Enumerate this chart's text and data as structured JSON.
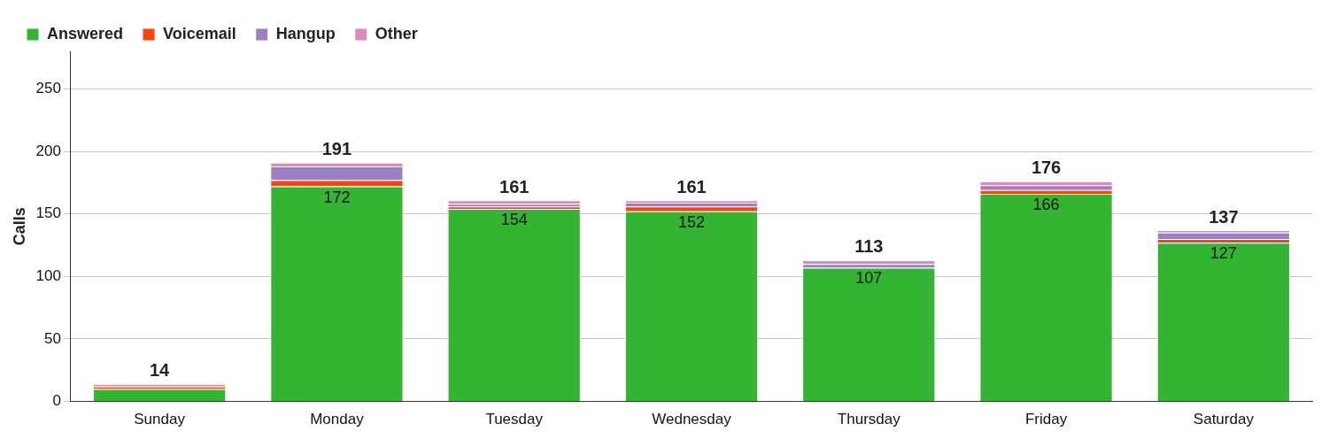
{
  "chart_data": {
    "type": "bar",
    "stacked": true,
    "ylabel": "Calls",
    "categories": [
      "Sunday",
      "Monday",
      "Tuesday",
      "Wednesday",
      "Thursday",
      "Friday",
      "Saturday"
    ],
    "series": [
      {
        "name": "Answered",
        "color": "#33b533",
        "values": [
          10,
          172,
          154,
          152,
          107,
          166,
          127
        ],
        "value_labels": [
          null,
          "172",
          "154",
          "152",
          "107",
          "166",
          "127"
        ]
      },
      {
        "name": "Voicemail",
        "color": "#ff4010",
        "values": [
          2,
          5,
          2,
          4,
          0,
          3,
          3
        ]
      },
      {
        "name": "Hangup",
        "color": "#9980c4",
        "values": [
          0,
          11,
          2,
          3,
          3,
          4,
          5
        ]
      },
      {
        "name": "Other",
        "color": "#e088bb",
        "values": [
          2,
          3,
          3,
          2,
          3,
          3,
          2
        ]
      }
    ],
    "totals": [
      "14",
      "191",
      "161",
      "161",
      "113",
      "176",
      "137"
    ],
    "ylim": [
      0,
      280
    ],
    "yticks": [
      0,
      50,
      100,
      150,
      200,
      250
    ],
    "grid": "y",
    "legend": "top left"
  }
}
